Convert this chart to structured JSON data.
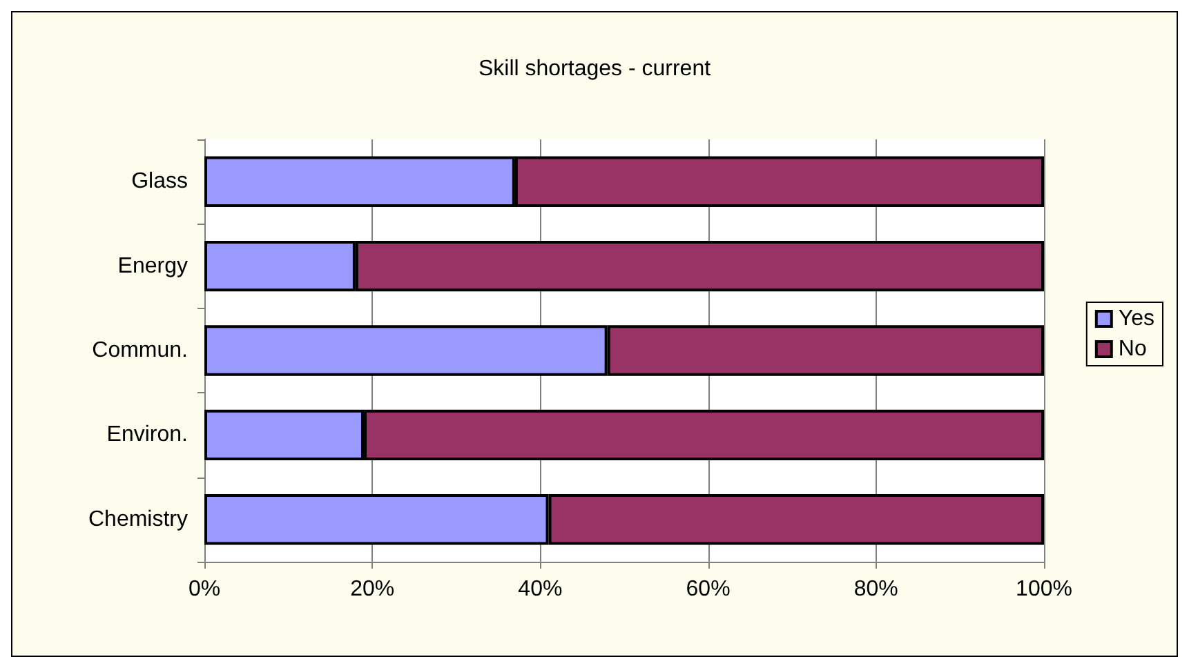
{
  "chart_data": {
    "type": "bar",
    "title": "Skill shortages - current",
    "orientation": "horizontal",
    "stacked": true,
    "categories": [
      "Glass",
      "Energy",
      "Commun.",
      "Environ.",
      "Chemistry"
    ],
    "series": [
      {
        "name": "Yes",
        "color": "#9999ff",
        "values": [
          37,
          18,
          48,
          19,
          41
        ]
      },
      {
        "name": "No",
        "color": "#993366",
        "values": [
          63,
          82,
          52,
          81,
          59
        ]
      }
    ],
    "xlim": [
      0,
      100
    ],
    "xticks": [
      {
        "value": 0,
        "label": "0%"
      },
      {
        "value": 20,
        "label": "20%"
      },
      {
        "value": 40,
        "label": "40%"
      },
      {
        "value": 60,
        "label": "60%"
      },
      {
        "value": 80,
        "label": "80%"
      },
      {
        "value": 100,
        "label": "100%"
      }
    ],
    "grid": "x",
    "legend": "right"
  }
}
